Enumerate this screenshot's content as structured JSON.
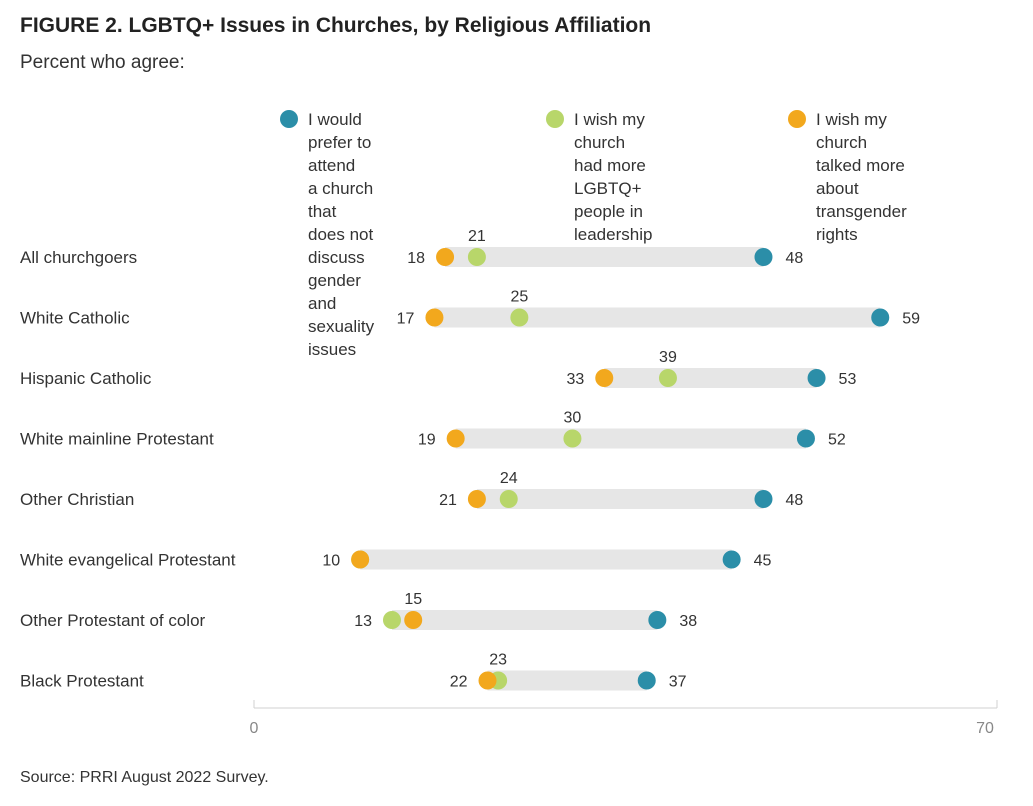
{
  "title": "FIGURE 2. LGBTQ+ Issues in Churches, by Religious Affiliation",
  "subtitle": "Percent who agree:",
  "legend": [
    {
      "label": "I would prefer to attend\na church that does not\ndiscuss gender and\nsexuality issues",
      "color": "#2b8ea8"
    },
    {
      "label": "I wish my church\nhad more LGBTQ+\npeople in leadership\npositions",
      "color": "#b8d66a"
    },
    {
      "label": "I wish my church\ntalked more about\ntransgender rights",
      "color": "#f2a81d"
    }
  ],
  "source": "Source: PRRI August 2022 Survey.",
  "chart_data": {
    "type": "dot",
    "xlim": [
      0,
      70
    ],
    "x_ticks": [
      "0",
      "70"
    ],
    "categories": [
      "All churchgoers",
      "White Catholic",
      "Hispanic Catholic",
      "White mainline Protestant",
      "Other Christian",
      "White evangelical Protestant",
      "Other Protestant of color",
      "Black Protestant"
    ],
    "series": [
      {
        "name": "I would prefer to attend a church that does not discuss gender and sexuality issues",
        "color": "#2b8ea8",
        "values": [
          48,
          59,
          53,
          52,
          48,
          45,
          38,
          37
        ]
      },
      {
        "name": "I wish my church had more LGBTQ+ people in leadership positions",
        "color": "#b8d66a",
        "values": [
          21,
          25,
          39,
          30,
          24,
          10,
          13,
          23
        ]
      },
      {
        "name": "I wish my church talked more about transgender rights",
        "color": "#f2a81d",
        "values": [
          18,
          17,
          33,
          19,
          21,
          10,
          15,
          22
        ]
      }
    ],
    "grid": false,
    "legend_position": "top"
  }
}
